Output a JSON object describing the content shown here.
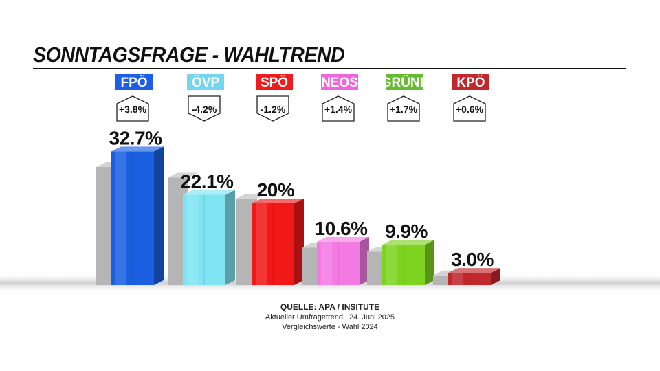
{
  "title": "SONNTAGSFRAGE - WAHLTREND",
  "source": {
    "line1": "QUELLE: APA / INSITUTE",
    "line2": "Aktueller Umfragetrend | 24. Juni 2025",
    "line3": "Vergleichswerte - Wahl 2024"
  },
  "chart_data": {
    "type": "bar",
    "title": "SONNTAGSFRAGE - WAHLTREND",
    "categories": [
      "FPÖ",
      "ÖVP",
      "SPÖ",
      "NEOS",
      "GRÜNE",
      "KPÖ"
    ],
    "series": [
      {
        "values": [
          32.7,
          22.1,
          20,
          10.6,
          9.9,
          3.0
        ]
      },
      {
        "values": [
          28.9,
          26.3,
          21.2,
          9.2,
          8.2,
          2.4
        ]
      }
    ],
    "value_labels": [
      "32.7%",
      "22.1%",
      "20%",
      "10.6%",
      "9.9%",
      "3.0%"
    ],
    "changes": [
      "+3.8%",
      "-4.2%",
      "-1.2%",
      "+1.4%",
      "+1.7%",
      "+0.6%"
    ],
    "change_direction": [
      "up",
      "down",
      "down",
      "up",
      "up",
      "up"
    ],
    "colors": [
      "#1a5fe0",
      "#7fe3f2",
      "#f01818",
      "#f27ae2",
      "#7ed321",
      "#c0282c"
    ],
    "label_colors": [
      "#1e5ee6",
      "#73d6ee",
      "#ee1c1c",
      "#ee66dd",
      "#66bb33",
      "#c1272d"
    ],
    "comparison_color": "#b5b5b5",
    "grid": false,
    "legend": "none"
  }
}
